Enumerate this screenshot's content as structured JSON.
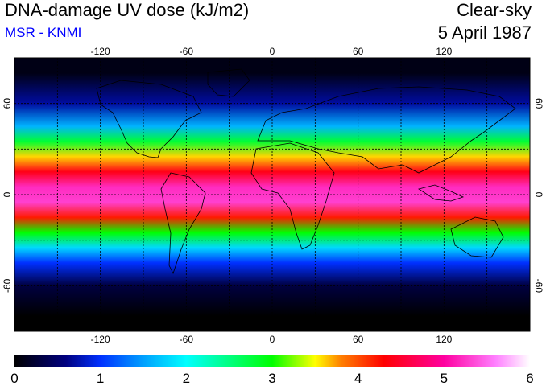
{
  "header": {
    "title": "DNA-damage UV dose (kJ/m2)",
    "subtitle": "MSR - KNMI",
    "sky_condition": "Clear-sky",
    "date": "5 April 1987"
  },
  "colors": {
    "subtitle": "#0000ff",
    "frame": "#000000",
    "gridlines": "#000000",
    "background": "#ffffff"
  },
  "map": {
    "projection": "equirectangular",
    "lon_range": [
      -180,
      180
    ],
    "lat_range": [
      -90,
      90
    ],
    "gridlines": "dashed every 30 degrees",
    "coastlines": true,
    "lon_ticks": [
      "-120",
      "-60",
      "0",
      "60",
      "120"
    ],
    "lat_ticks": [
      "60",
      "0",
      "-60"
    ],
    "variable": "DNA-damage UV dose",
    "units": "kJ/m2",
    "zonal_pattern": [
      {
        "lat": 80,
        "dose": 0.1
      },
      {
        "lat": 60,
        "dose": 0.7
      },
      {
        "lat": 45,
        "dose": 1.6
      },
      {
        "lat": 35,
        "dose": 2.8
      },
      {
        "lat": 25,
        "dose": 3.6
      },
      {
        "lat": 15,
        "dose": 4.4
      },
      {
        "lat": 5,
        "dose": 5.2
      },
      {
        "lat": -5,
        "dose": 5.3
      },
      {
        "lat": -15,
        "dose": 4.2
      },
      {
        "lat": -25,
        "dose": 3.0
      },
      {
        "lat": -35,
        "dose": 1.8
      },
      {
        "lat": -45,
        "dose": 1.0
      },
      {
        "lat": -60,
        "dose": 0.3
      },
      {
        "lat": -80,
        "dose": 0.0
      }
    ]
  },
  "colorbar": {
    "min": 0,
    "max": 6,
    "labels": [
      "0",
      "1",
      "2",
      "3",
      "4",
      "5",
      "6"
    ],
    "stops": [
      {
        "value": 0,
        "color": "#000000"
      },
      {
        "value": 0.6,
        "color": "#000080"
      },
      {
        "value": 1.0,
        "color": "#0030ff"
      },
      {
        "value": 1.5,
        "color": "#00a0ff"
      },
      {
        "value": 2.0,
        "color": "#00ffff"
      },
      {
        "value": 2.5,
        "color": "#00ff80"
      },
      {
        "value": 3.0,
        "color": "#00ff00"
      },
      {
        "value": 3.5,
        "color": "#ffff00"
      },
      {
        "value": 3.8,
        "color": "#ff8000"
      },
      {
        "value": 4.3,
        "color": "#ff0000"
      },
      {
        "value": 5.0,
        "color": "#ff00a0"
      },
      {
        "value": 5.6,
        "color": "#ff80ff"
      },
      {
        "value": 6.0,
        "color": "#ffffff"
      }
    ]
  }
}
